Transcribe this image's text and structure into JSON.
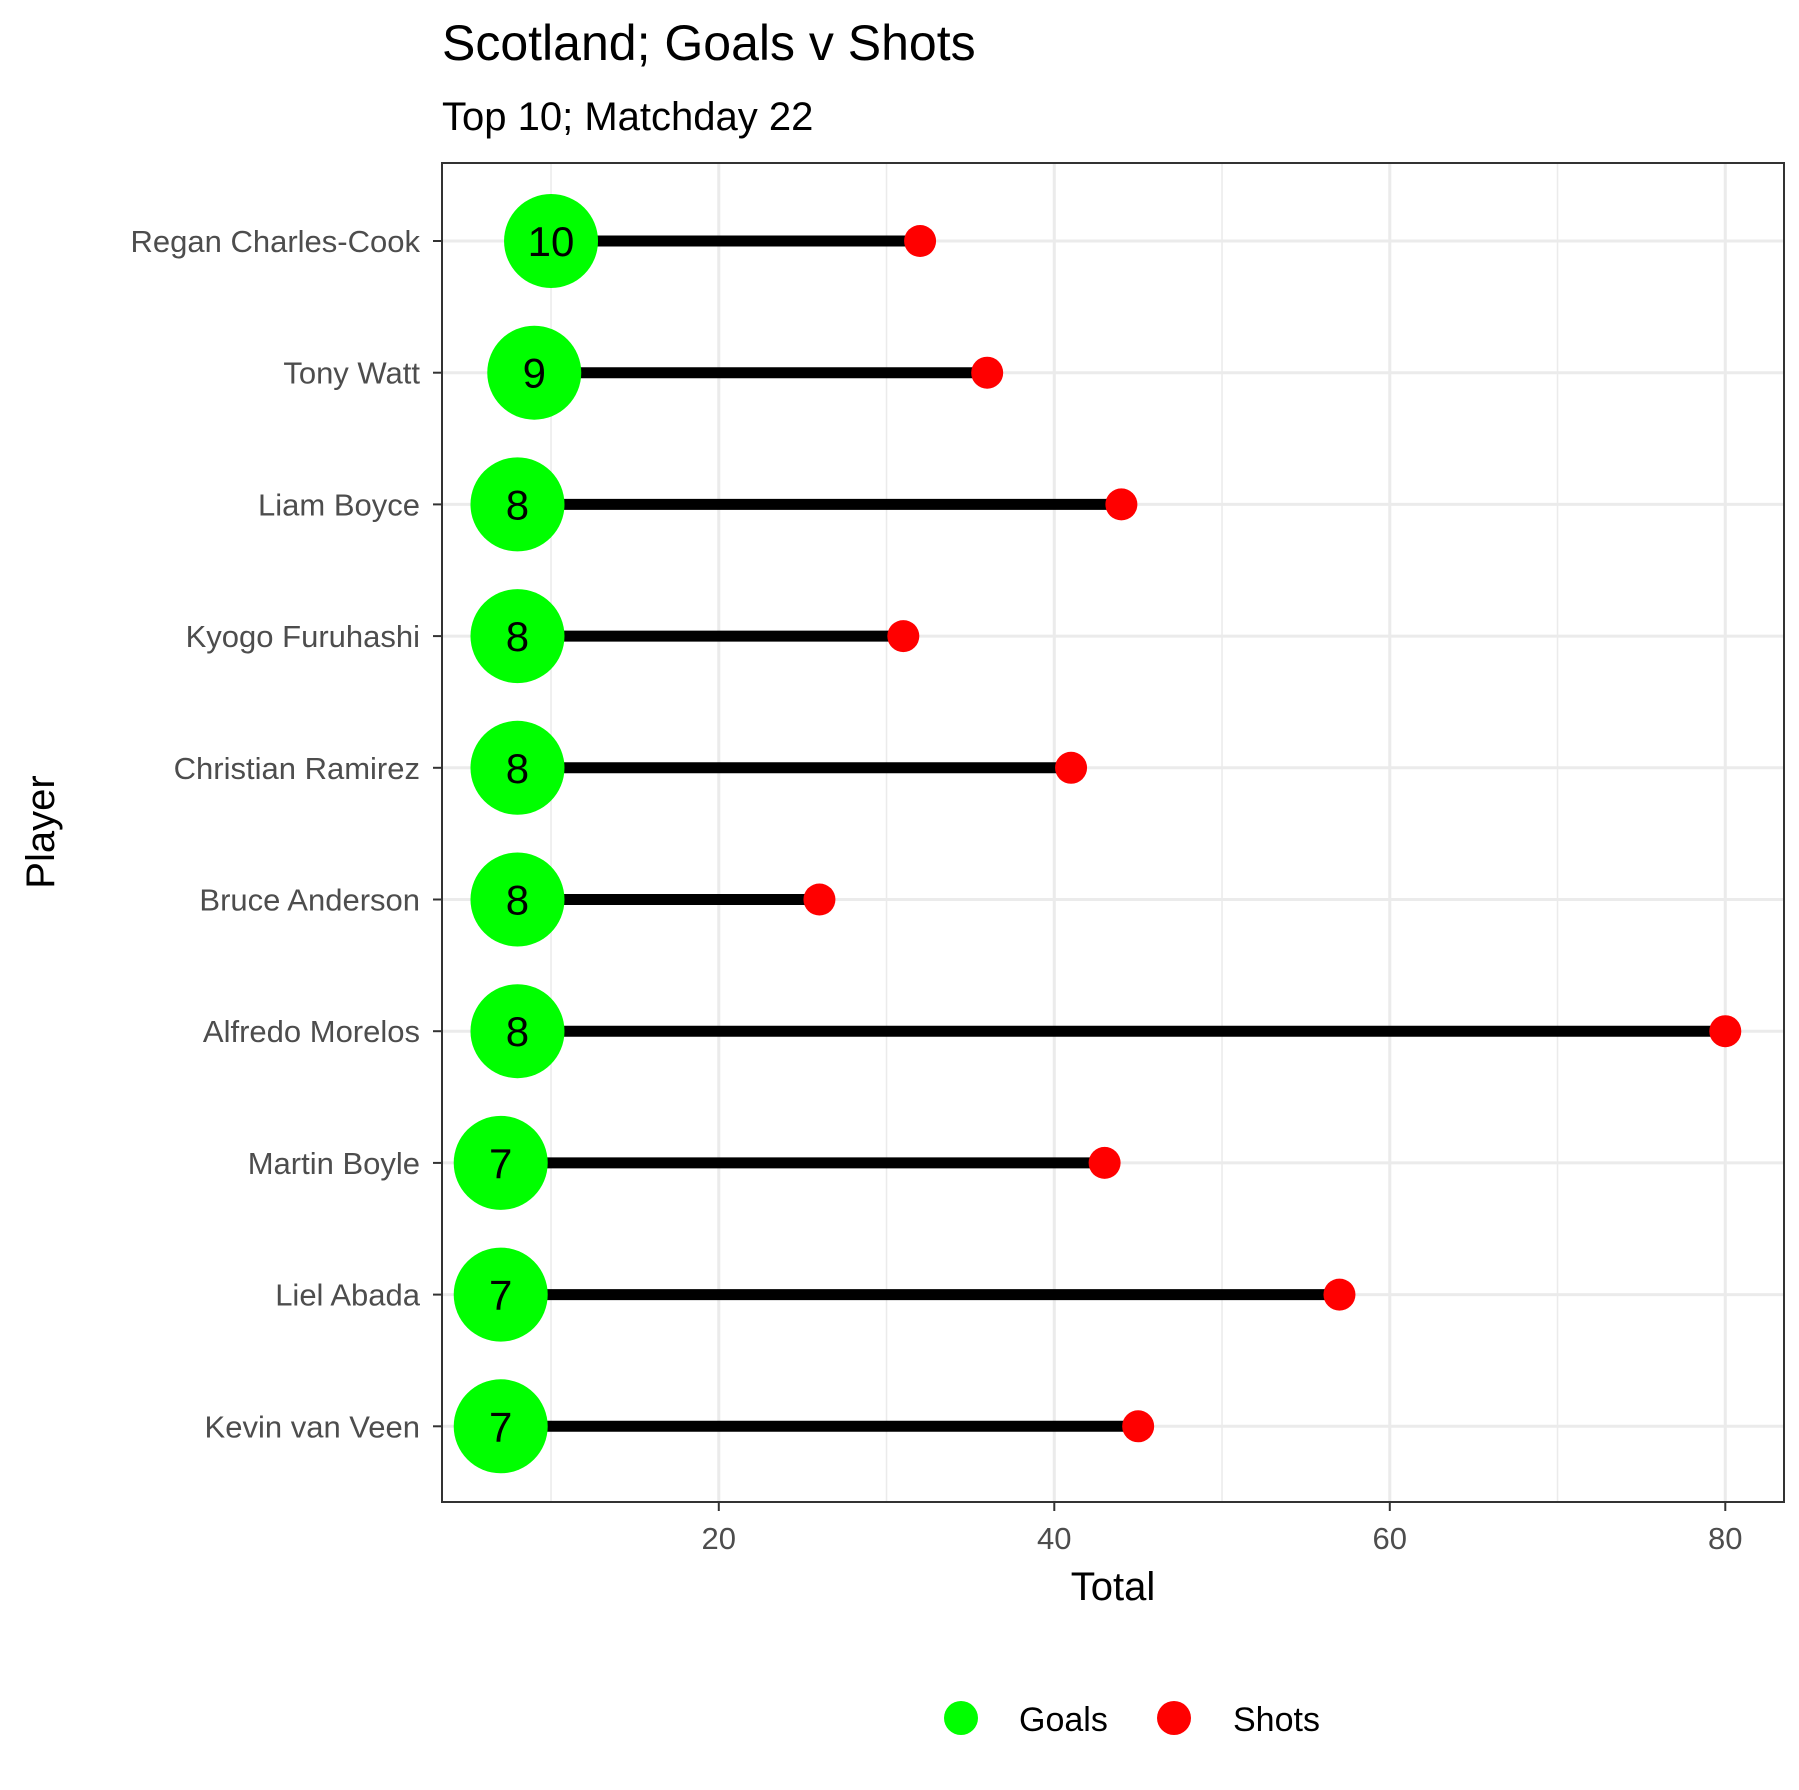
{
  "chart_data": {
    "type": "lollipop",
    "title": "Scotland; Goals v Shots",
    "subtitle": "Top 10; Matchday 22",
    "xlabel": "Total",
    "ylabel": "Player",
    "xlim": [
      3.5,
      83.5
    ],
    "x_ticks": [
      20,
      40,
      60,
      80
    ],
    "x_tick_labels": [
      "20",
      "40",
      "60",
      "80"
    ],
    "grid": true,
    "legend_position": "bottom",
    "categories": [
      "Regan Charles-Cook",
      "Tony Watt",
      "Liam Boyce",
      "Kyogo Furuhashi",
      "Christian Ramirez",
      "Bruce Anderson",
      "Alfredo Morelos",
      "Martin Boyle",
      "Liel Abada",
      "Kevin van Veen"
    ],
    "series": [
      {
        "name": "Goals",
        "color": "#00ff00",
        "values": [
          10,
          9,
          8,
          8,
          8,
          8,
          8,
          7,
          7,
          7
        ]
      },
      {
        "name": "Shots",
        "color": "#ff0000",
        "values": [
          32,
          36,
          44,
          31,
          41,
          26,
          80,
          43,
          57,
          45
        ]
      }
    ],
    "segment_color": "#000000",
    "goal_labels": [
      "10",
      "9",
      "8",
      "8",
      "8",
      "8",
      "8",
      "7",
      "7",
      "7"
    ]
  }
}
